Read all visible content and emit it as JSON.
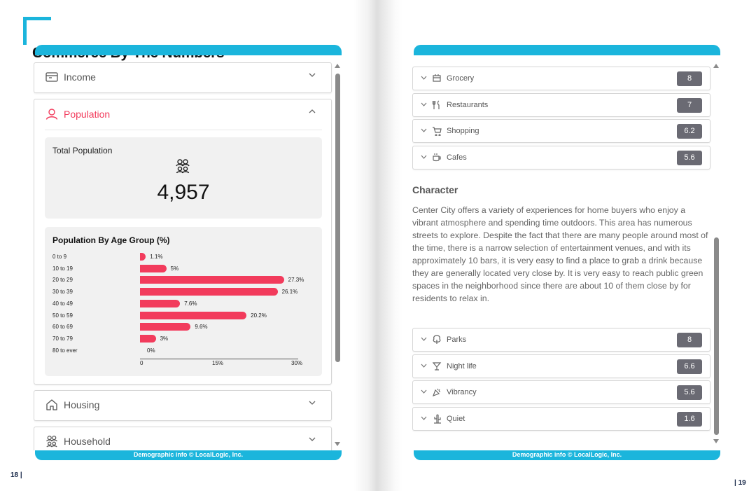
{
  "left_page": {
    "title": "Commerce By The Numbers",
    "accordion": {
      "income_label": "Income",
      "population_label": "Population",
      "housing_label": "Housing",
      "household_label": "Household"
    },
    "total_population": {
      "label": "Total Population",
      "value": "4,957"
    },
    "footer": "Demographic info © LocalLogic, Inc.",
    "page_number": "18 |"
  },
  "chart_data": {
    "type": "bar",
    "orientation": "horizontal",
    "title": "Population By Age Group (%)",
    "categories": [
      "0 to 9",
      "10 to 19",
      "20 to 29",
      "30 to 39",
      "40 to 49",
      "50 to 59",
      "60 to 69",
      "70 to 79",
      "80 to ever"
    ],
    "values": [
      1.1,
      5,
      27.3,
      26.1,
      7.6,
      20.2,
      9.6,
      3,
      0
    ],
    "value_labels": [
      "1.1%",
      "5%",
      "27.3%",
      "26.1%",
      "7.6%",
      "20.2%",
      "9.6%",
      "3%",
      "0%"
    ],
    "xlim": [
      0,
      30
    ],
    "ticks": [
      "0",
      "15%",
      "30%"
    ],
    "xlabel": "",
    "ylabel": ""
  },
  "right_page": {
    "categories_top": [
      {
        "label": "Grocery",
        "icon": "grocery-icon",
        "score": "8"
      },
      {
        "label": "Restaurants",
        "icon": "restaurant-icon",
        "score": "7"
      },
      {
        "label": "Shopping",
        "icon": "cart-icon",
        "score": "6.2"
      },
      {
        "label": "Cafes",
        "icon": "coffee-icon",
        "score": "5.6"
      }
    ],
    "character": {
      "title": "Character",
      "text": "Center City offers a variety of experiences for home buyers who enjoy a vibrant atmosphere and spending time outdoors. This area has numerous streets to explore. Despite the fact that there are many people around most of the time, there is a narrow selection of entertainment venues, and with its approximately 10 bars, it is very easy to find a place to grab a drink because they are generally located very close by. It is very easy to reach public green spaces in the neighborhood since there are about 10 of them close by for residents to relax in."
    },
    "categories_bottom": [
      {
        "label": "Parks",
        "icon": "tree-icon",
        "score": "8"
      },
      {
        "label": "Night life",
        "icon": "cocktail-icon",
        "score": "6.6"
      },
      {
        "label": "Vibrancy",
        "icon": "party-icon",
        "score": "5.6"
      },
      {
        "label": "Quiet",
        "icon": "cactus-icon",
        "score": "1.6"
      }
    ],
    "footer": "Demographic info © LocalLogic, Inc.",
    "page_number": "| 19"
  },
  "colors": {
    "accent": "#1bb5dc",
    "population_active": "#f23b5c",
    "bar": "#f23b5c",
    "score_badge": "#6a6a73"
  }
}
